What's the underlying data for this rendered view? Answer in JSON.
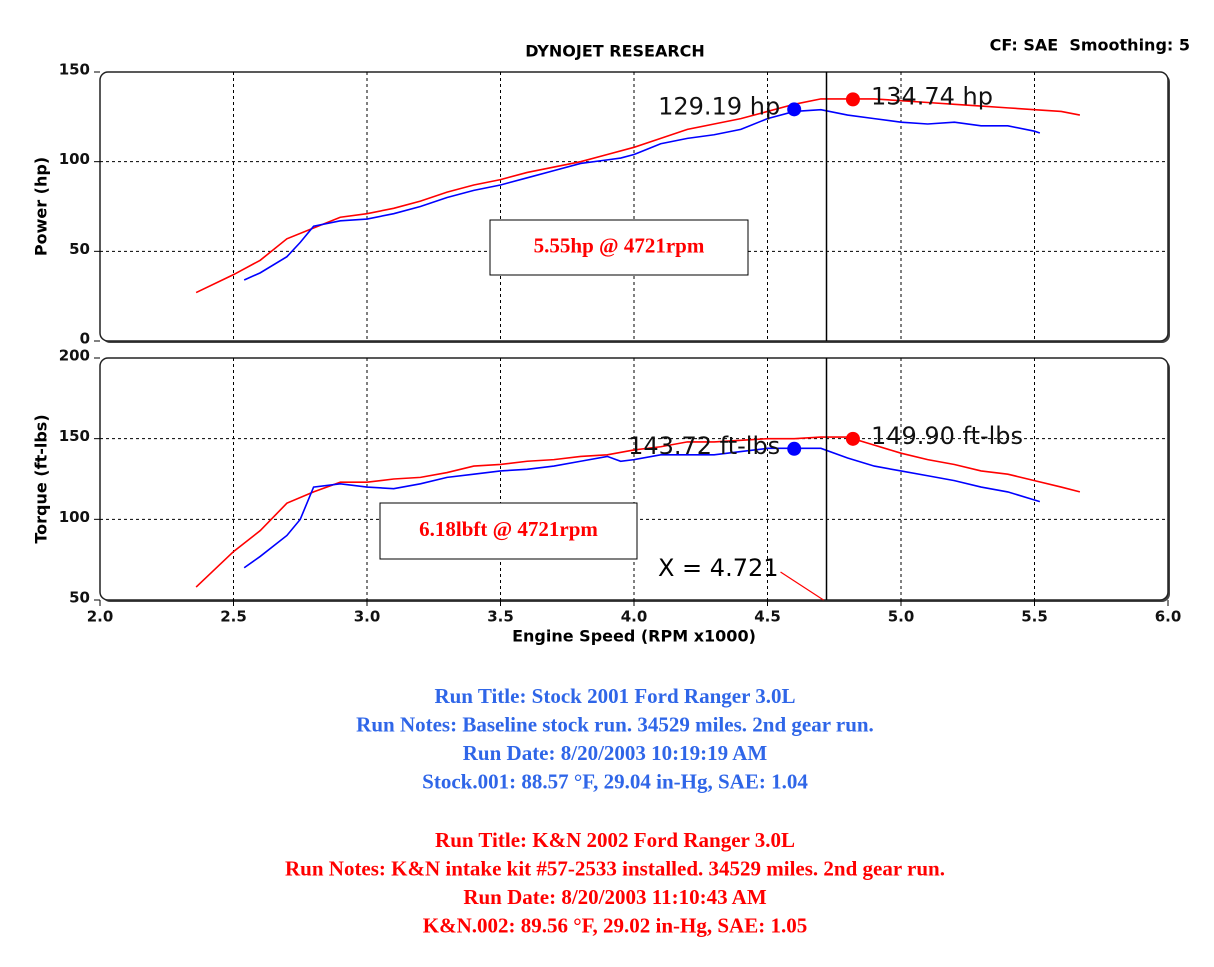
{
  "header": {
    "title": "DYNOJET RESEARCH",
    "settings": "CF: SAE  Smoothing: 5"
  },
  "chart_data": [
    {
      "type": "line",
      "ylabel": "Power (hp)",
      "xlim": [
        2,
        6
      ],
      "ylim": [
        0,
        150
      ],
      "xticks": [
        2.5,
        3,
        3.5,
        4,
        4.5,
        5,
        5.5
      ],
      "yticks": [
        0,
        50,
        100,
        150
      ],
      "grid": true,
      "series": [
        {
          "color": "#ff0000",
          "x": [
            2.36,
            2.5,
            2.6,
            2.7,
            2.8,
            2.9,
            3.0,
            3.1,
            3.2,
            3.3,
            3.4,
            3.5,
            3.6,
            3.7,
            3.8,
            3.9,
            4.0,
            4.1,
            4.2,
            4.3,
            4.4,
            4.5,
            4.6,
            4.7,
            4.8,
            4.9,
            5.0,
            5.1,
            5.2,
            5.3,
            5.4,
            5.5,
            5.6,
            5.67
          ],
          "values": [
            27,
            37,
            45,
            57,
            63,
            69,
            71,
            74,
            78,
            83,
            87,
            90,
            94,
            97,
            100,
            104,
            108,
            113,
            118,
            121,
            124,
            128,
            132,
            135,
            135,
            135,
            134,
            133,
            132,
            131,
            130,
            129,
            128,
            126
          ]
        },
        {
          "color": "#0000ff",
          "x": [
            2.54,
            2.6,
            2.7,
            2.75,
            2.8,
            2.9,
            3.0,
            3.1,
            3.2,
            3.3,
            3.4,
            3.5,
            3.6,
            3.7,
            3.8,
            3.9,
            3.95,
            4.0,
            4.1,
            4.2,
            4.3,
            4.4,
            4.5,
            4.6,
            4.7,
            4.8,
            4.9,
            5.0,
            5.1,
            5.2,
            5.3,
            5.4,
            5.5,
            5.52
          ],
          "values": [
            34,
            38,
            47,
            55,
            64,
            67,
            68,
            71,
            75,
            80,
            84,
            87,
            91,
            95,
            99,
            101,
            102,
            104,
            110,
            113,
            115,
            118,
            124,
            128,
            129,
            126,
            124,
            122,
            121,
            122,
            120,
            120,
            117,
            116
          ]
        }
      ],
      "markers": [
        {
          "x": 4.6,
          "y": 129.19,
          "label": "129.19 hp",
          "color": "#0000ff"
        },
        {
          "x": 4.82,
          "y": 134.74,
          "label": "134.74 hp",
          "color": "#ff0000"
        }
      ],
      "annotation": "5.55hp @ 4721rpm",
      "cursor_x": 4.721
    },
    {
      "type": "line",
      "ylabel": "Torque (ft-lbs)",
      "xlabel": "Engine Speed (RPM x1000)",
      "xlim": [
        2,
        6
      ],
      "ylim": [
        50,
        200
      ],
      "xticks": [
        {
          "value": 2,
          "label": "2.0"
        },
        2.5,
        {
          "value": 3,
          "label": "3.0"
        },
        3.5,
        {
          "value": 4,
          "label": "4.0"
        },
        4.5,
        {
          "value": 5,
          "label": "5.0"
        },
        5.5,
        {
          "value": 6,
          "label": "6.0"
        }
      ],
      "yticks": [
        50,
        100,
        150,
        200
      ],
      "grid": true,
      "series": [
        {
          "color": "#ff0000",
          "x": [
            2.36,
            2.5,
            2.6,
            2.7,
            2.8,
            2.9,
            3.0,
            3.1,
            3.2,
            3.3,
            3.4,
            3.5,
            3.6,
            3.7,
            3.8,
            3.9,
            4.0,
            4.1,
            4.2,
            4.3,
            4.4,
            4.5,
            4.6,
            4.7,
            4.8,
            4.9,
            5.0,
            5.1,
            5.2,
            5.3,
            5.4,
            5.5,
            5.6,
            5.67
          ],
          "values": [
            58,
            80,
            93,
            110,
            117,
            123,
            123,
            125,
            126,
            129,
            133,
            134,
            136,
            137,
            139,
            140,
            143,
            145,
            148,
            148,
            149,
            150,
            150,
            151,
            151,
            146,
            141,
            137,
            134,
            130,
            128,
            124,
            120,
            117
          ]
        },
        {
          "color": "#0000ff",
          "x": [
            2.54,
            2.6,
            2.7,
            2.75,
            2.8,
            2.9,
            3.0,
            3.1,
            3.2,
            3.3,
            3.4,
            3.5,
            3.6,
            3.7,
            3.8,
            3.9,
            3.95,
            4.0,
            4.1,
            4.2,
            4.3,
            4.4,
            4.5,
            4.6,
            4.7,
            4.8,
            4.9,
            5.0,
            5.1,
            5.2,
            5.3,
            5.4,
            5.5,
            5.52
          ],
          "values": [
            70,
            77,
            90,
            100,
            120,
            122,
            120,
            119,
            122,
            126,
            128,
            130,
            131,
            133,
            136,
            139,
            136,
            137,
            140,
            140,
            140,
            142,
            144,
            144,
            144,
            138,
            133,
            130,
            127,
            124,
            120,
            117,
            112,
            111
          ]
        }
      ],
      "markers": [
        {
          "x": 4.6,
          "y": 143.72,
          "label": "143.72 ft-lbs",
          "color": "#0000ff"
        },
        {
          "x": 4.82,
          "y": 149.9,
          "label": "149.90 ft-lbs",
          "color": "#ff0000"
        }
      ],
      "annotation": "6.18lbft @ 4721rpm",
      "cursor_x": 4.721,
      "cursor_label": "X = 4.721"
    }
  ],
  "runs": [
    {
      "color": "#2f66e8",
      "lines": [
        "Run Title: Stock 2001 Ford Ranger 3.0L",
        "Run Notes: Baseline stock run. 34529 miles. 2nd gear run.",
        "Run Date: 8/20/2003 10:19:19 AM",
        "Stock.001: 88.57 °F, 29.04 in-Hg, SAE: 1.04"
      ]
    },
    {
      "color": "#ff0000",
      "lines": [
        "Run Title: K&N 2002 Ford Ranger 3.0L",
        "Run Notes: K&N intake kit #57-2533 installed. 34529 miles. 2nd gear run.",
        "Run Date: 8/20/2003 11:10:43 AM",
        "K&N.002: 89.56 °F, 29.02 in-Hg, SAE: 1.05"
      ]
    }
  ]
}
